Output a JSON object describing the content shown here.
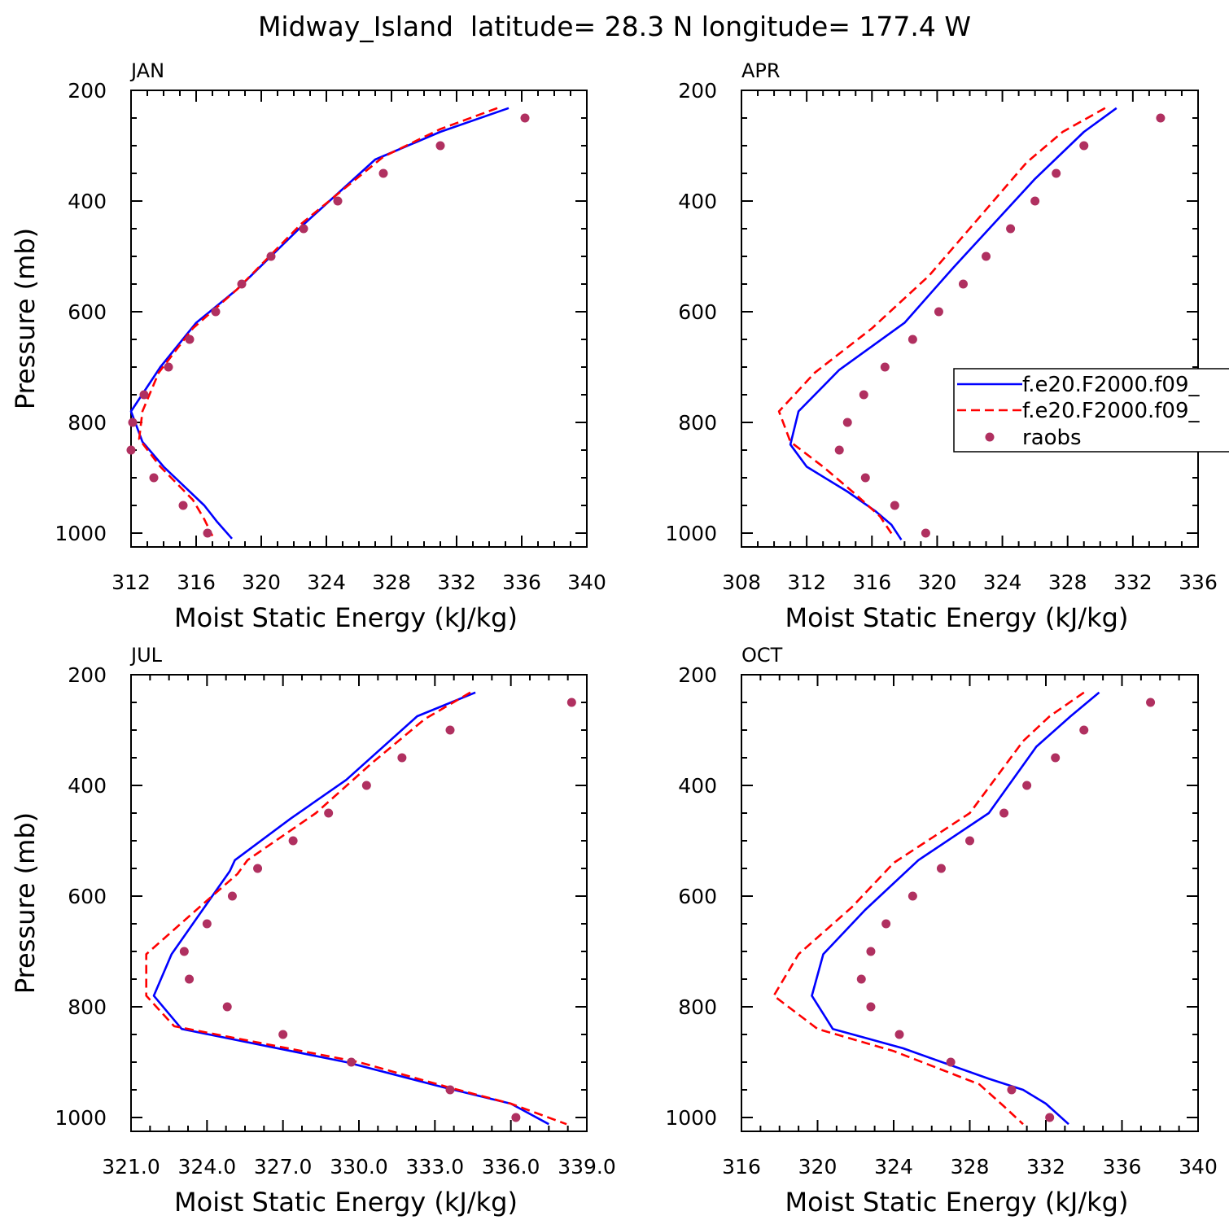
{
  "title": "Midway_Island  latitude= 28.3 N longitude= 177.4 W",
  "colors": {
    "model1": "#0000ff",
    "model2": "#ff0000",
    "raobs": "#b03060"
  },
  "legend": {
    "entries": [
      {
        "label": "f.e20.F2000.f09_",
        "style": "solid",
        "color": "#0000ff"
      },
      {
        "label": "f.e20.F2000.f09_",
        "style": "dashed",
        "color": "#ff0000"
      },
      {
        "label": "raobs",
        "style": "marker",
        "color": "#b03060"
      }
    ]
  },
  "chart_data": [
    {
      "type": "line",
      "panel": "JAN",
      "xlabel": "Moist Static Energy (kJ/kg)",
      "ylabel": "Pressure (mb)",
      "xlim": [
        312,
        340
      ],
      "xticks": [
        312,
        316,
        320,
        324,
        328,
        332,
        336,
        340
      ],
      "xtick_labels": [
        "312",
        "316",
        "320",
        "324",
        "328",
        "332",
        "336",
        "340"
      ],
      "ylim": [
        200,
        1025
      ],
      "yticks": [
        200,
        400,
        600,
        800,
        1000
      ],
      "ytick_labels": [
        "200",
        "400",
        "600",
        "800",
        "1000"
      ],
      "series": [
        {
          "name": "f.e20.F2000.f09_ (solid)",
          "style": "solid",
          "x": [
            335.2,
            331.0,
            327.0,
            322.5,
            318.5,
            316.0,
            313.8,
            312.0,
            312.7,
            314.0,
            316.5,
            317.3,
            318.2
          ],
          "y": [
            232,
            275,
            325,
            445,
            560,
            620,
            700,
            780,
            835,
            880,
            950,
            980,
            1010
          ]
        },
        {
          "name": "f.e20.F2000.f09_ (dashed)",
          "style": "dashed",
          "x": [
            334.5,
            331.0,
            327.5,
            322.5,
            318.5,
            315.8,
            313.7,
            312.7,
            312.5,
            313.8,
            315.8,
            316.5,
            317.0
          ],
          "y": [
            232,
            270,
            320,
            440,
            560,
            630,
            710,
            780,
            830,
            880,
            940,
            975,
            1005
          ]
        },
        {
          "name": "raobs",
          "style": "marker",
          "x": [
            336.2,
            331.0,
            327.5,
            324.7,
            322.6,
            320.6,
            318.8,
            317.2,
            315.6,
            314.3,
            312.8,
            312.1,
            312.0,
            313.4,
            315.2,
            316.7
          ],
          "y": [
            250,
            300,
            350,
            400,
            450,
            500,
            550,
            600,
            650,
            700,
            750,
            800,
            850,
            900,
            950,
            1000
          ]
        }
      ]
    },
    {
      "type": "line",
      "panel": "APR",
      "xlabel": "Moist Static Energy (kJ/kg)",
      "ylabel": "",
      "xlim": [
        308,
        336
      ],
      "xticks": [
        308,
        312,
        316,
        320,
        324,
        328,
        332,
        336
      ],
      "xtick_labels": [
        "308",
        "312",
        "316",
        "320",
        "324",
        "328",
        "332",
        "336"
      ],
      "ylim": [
        200,
        1025
      ],
      "yticks": [
        200,
        400,
        600,
        800,
        1000
      ],
      "ytick_labels": [
        "200",
        "400",
        "600",
        "800",
        "1000"
      ],
      "series": [
        {
          "name": "f.e20.F2000.f09_ (solid)",
          "style": "solid",
          "x": [
            331.0,
            329.0,
            326.0,
            321.0,
            318.0,
            314.0,
            311.5,
            311.0,
            312.0,
            314.5,
            316.2,
            317.2,
            317.8
          ],
          "y": [
            232,
            275,
            360,
            520,
            620,
            705,
            780,
            840,
            880,
            925,
            960,
            985,
            1012
          ]
        },
        {
          "name": "f.e20.F2000.f09_ (dashed)",
          "style": "dashed",
          "x": [
            330.3,
            327.7,
            325.5,
            319.5,
            316.0,
            312.5,
            310.3,
            311.0,
            313.0,
            315.0,
            316.5,
            317.3
          ],
          "y": [
            232,
            275,
            330,
            535,
            630,
            710,
            780,
            835,
            880,
            930,
            970,
            1005
          ]
        },
        {
          "name": "raobs",
          "style": "marker",
          "x": [
            333.7,
            329.0,
            327.3,
            326.0,
            324.5,
            323.0,
            321.6,
            320.1,
            318.5,
            316.8,
            315.5,
            314.5,
            314.0,
            315.6,
            317.4,
            319.3
          ],
          "y": [
            250,
            300,
            350,
            400,
            450,
            500,
            550,
            600,
            650,
            700,
            750,
            800,
            850,
            900,
            950,
            1000
          ]
        }
      ]
    },
    {
      "type": "line",
      "panel": "JUL",
      "xlabel": "Moist Static Energy (kJ/kg)",
      "ylabel": "Pressure (mb)",
      "xlim": [
        321.0,
        339.0
      ],
      "xticks": [
        321,
        324,
        327,
        330,
        333,
        336,
        339
      ],
      "xtick_labels": [
        "321.0",
        "324.0",
        "327.0",
        "330.0",
        "333.0",
        "336.0",
        "339.0"
      ],
      "ylim": [
        200,
        1025
      ],
      "yticks": [
        200,
        400,
        600,
        800,
        1000
      ],
      "ytick_labels": [
        "200",
        "400",
        "600",
        "800",
        "1000"
      ],
      "series": [
        {
          "name": "f.e20.F2000.f09_ (solid)",
          "style": "solid",
          "x": [
            334.6,
            332.3,
            329.5,
            327.3,
            325.1,
            324.9,
            323.9,
            322.6,
            321.9,
            323.0,
            329.5,
            333.3,
            336.0,
            337.5
          ],
          "y": [
            232,
            275,
            390,
            460,
            535,
            555,
            620,
            705,
            780,
            840,
            900,
            945,
            975,
            1012
          ]
        },
        {
          "name": "f.e20.F2000.f09_ (dashed)",
          "style": "dashed",
          "x": [
            334.4,
            332.6,
            330.5,
            328.3,
            325.6,
            325.2,
            323.7,
            321.6,
            321.6,
            322.7,
            330.0,
            333.5,
            336.0,
            338.2
          ],
          "y": [
            232,
            280,
            360,
            450,
            535,
            560,
            620,
            705,
            780,
            835,
            900,
            945,
            975,
            1012
          ]
        },
        {
          "name": "raobs",
          "style": "marker",
          "x": [
            338.4,
            333.6,
            331.7,
            330.3,
            328.8,
            327.4,
            326.0,
            325.0,
            324.0,
            323.1,
            323.3,
            324.8,
            327.0,
            329.7,
            333.6,
            336.2
          ],
          "y": [
            250,
            300,
            350,
            400,
            450,
            500,
            550,
            600,
            650,
            700,
            750,
            800,
            850,
            900,
            950,
            1000
          ]
        }
      ]
    },
    {
      "type": "line",
      "panel": "OCT",
      "xlabel": "Moist Static Energy (kJ/kg)",
      "ylabel": "",
      "xlim": [
        316,
        340
      ],
      "xticks": [
        316,
        320,
        324,
        328,
        332,
        336,
        340
      ],
      "xtick_labels": [
        "316",
        "320",
        "324",
        "328",
        "332",
        "336",
        "340"
      ],
      "ylim": [
        200,
        1025
      ],
      "yticks": [
        200,
        400,
        600,
        800,
        1000
      ],
      "ytick_labels": [
        "200",
        "400",
        "600",
        "800",
        "1000"
      ],
      "series": [
        {
          "name": "f.e20.F2000.f09_ (solid)",
          "style": "solid",
          "x": [
            334.8,
            333.3,
            331.5,
            329.0,
            325.3,
            322.5,
            320.3,
            319.7,
            320.8,
            324.5,
            329.0,
            330.8,
            332.0,
            333.2
          ],
          "y": [
            232,
            275,
            330,
            450,
            535,
            625,
            705,
            780,
            840,
            875,
            930,
            950,
            975,
            1012
          ]
        },
        {
          "name": "f.e20.F2000.f09_ (dashed)",
          "style": "dashed",
          "x": [
            334.0,
            332.2,
            330.8,
            328.0,
            324.0,
            321.8,
            319.0,
            317.7,
            320.0,
            324.0,
            328.5,
            329.8,
            330.8
          ],
          "y": [
            232,
            275,
            320,
            450,
            540,
            620,
            705,
            780,
            840,
            880,
            940,
            980,
            1012
          ]
        },
        {
          "name": "raobs",
          "style": "marker",
          "x": [
            337.5,
            334.0,
            332.5,
            331.0,
            329.8,
            328.0,
            326.5,
            325.0,
            323.6,
            322.8,
            322.3,
            322.8,
            324.3,
            327.0,
            330.2,
            332.2
          ],
          "y": [
            250,
            300,
            350,
            400,
            450,
            500,
            550,
            600,
            650,
            700,
            750,
            800,
            850,
            900,
            950,
            1000
          ]
        }
      ]
    }
  ]
}
